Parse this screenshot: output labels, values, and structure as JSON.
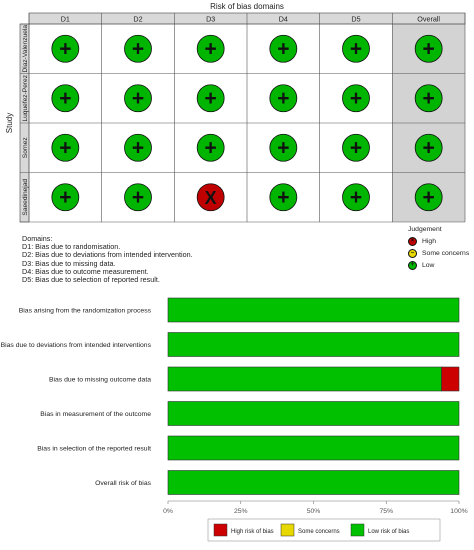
{
  "chart_data": [
    {
      "type": "table",
      "title": "Risk of bias domains",
      "ylabel": "Study",
      "columns": [
        "D1",
        "D2",
        "D3",
        "D4",
        "D5",
        "Overall"
      ],
      "rows": [
        "Diaz-Valenzuela",
        "Luquefez-Perez",
        "Sornez",
        "Saeedinejad"
      ],
      "judgements": [
        [
          "low",
          "low",
          "low",
          "low",
          "low",
          "low"
        ],
        [
          "low",
          "low",
          "low",
          "low",
          "low",
          "low"
        ],
        [
          "low",
          "low",
          "low",
          "low",
          "low",
          "low"
        ],
        [
          "low",
          "low",
          "high",
          "low",
          "low",
          "low"
        ]
      ],
      "domain_notes_title": "Domains:",
      "domain_notes": [
        "D1: Bias due to randomisation.",
        "D2: Bias due to deviations from intended intervention.",
        "D3: Bias due to missing data.",
        "D4: Bias due to outcome measurement.",
        "D5: Bias due to selection of reported result."
      ],
      "legend_title": "Judgement",
      "legend": [
        {
          "label": "High",
          "symbol": "X",
          "color": "#c00000"
        },
        {
          "label": "Some concerns",
          "symbol": "-",
          "color": "#e6d800"
        },
        {
          "label": "Low",
          "symbol": "+",
          "color": "#00b500"
        }
      ]
    },
    {
      "type": "bar",
      "orientation": "horizontal",
      "stacked": true,
      "categories": [
        "Bias arising from the randomization process",
        "Bias due to deviations from intended interventions",
        "Bias due to missing outcome data",
        "Bias in measurement of the outcome",
        "Bias in selection of the reported result",
        "Overall risk of bias"
      ],
      "series": [
        {
          "name": "Low risk of bias",
          "color": "#00c000",
          "values": [
            100,
            100,
            94,
            100,
            100,
            100
          ]
        },
        {
          "name": "Some concerns",
          "color": "#e6d800",
          "values": [
            0,
            0,
            0,
            0,
            0,
            0
          ]
        },
        {
          "name": "High risk of bias",
          "color": "#cc0000",
          "values": [
            0,
            0,
            6,
            0,
            0,
            0
          ]
        }
      ],
      "xticks": [
        "0%",
        "25%",
        "50%",
        "75%",
        "100%"
      ],
      "xlim": [
        0,
        100
      ],
      "legend_order": [
        "High risk of bias",
        "Some concerns",
        "Low risk of bias"
      ],
      "legend_position": "bottom"
    }
  ]
}
